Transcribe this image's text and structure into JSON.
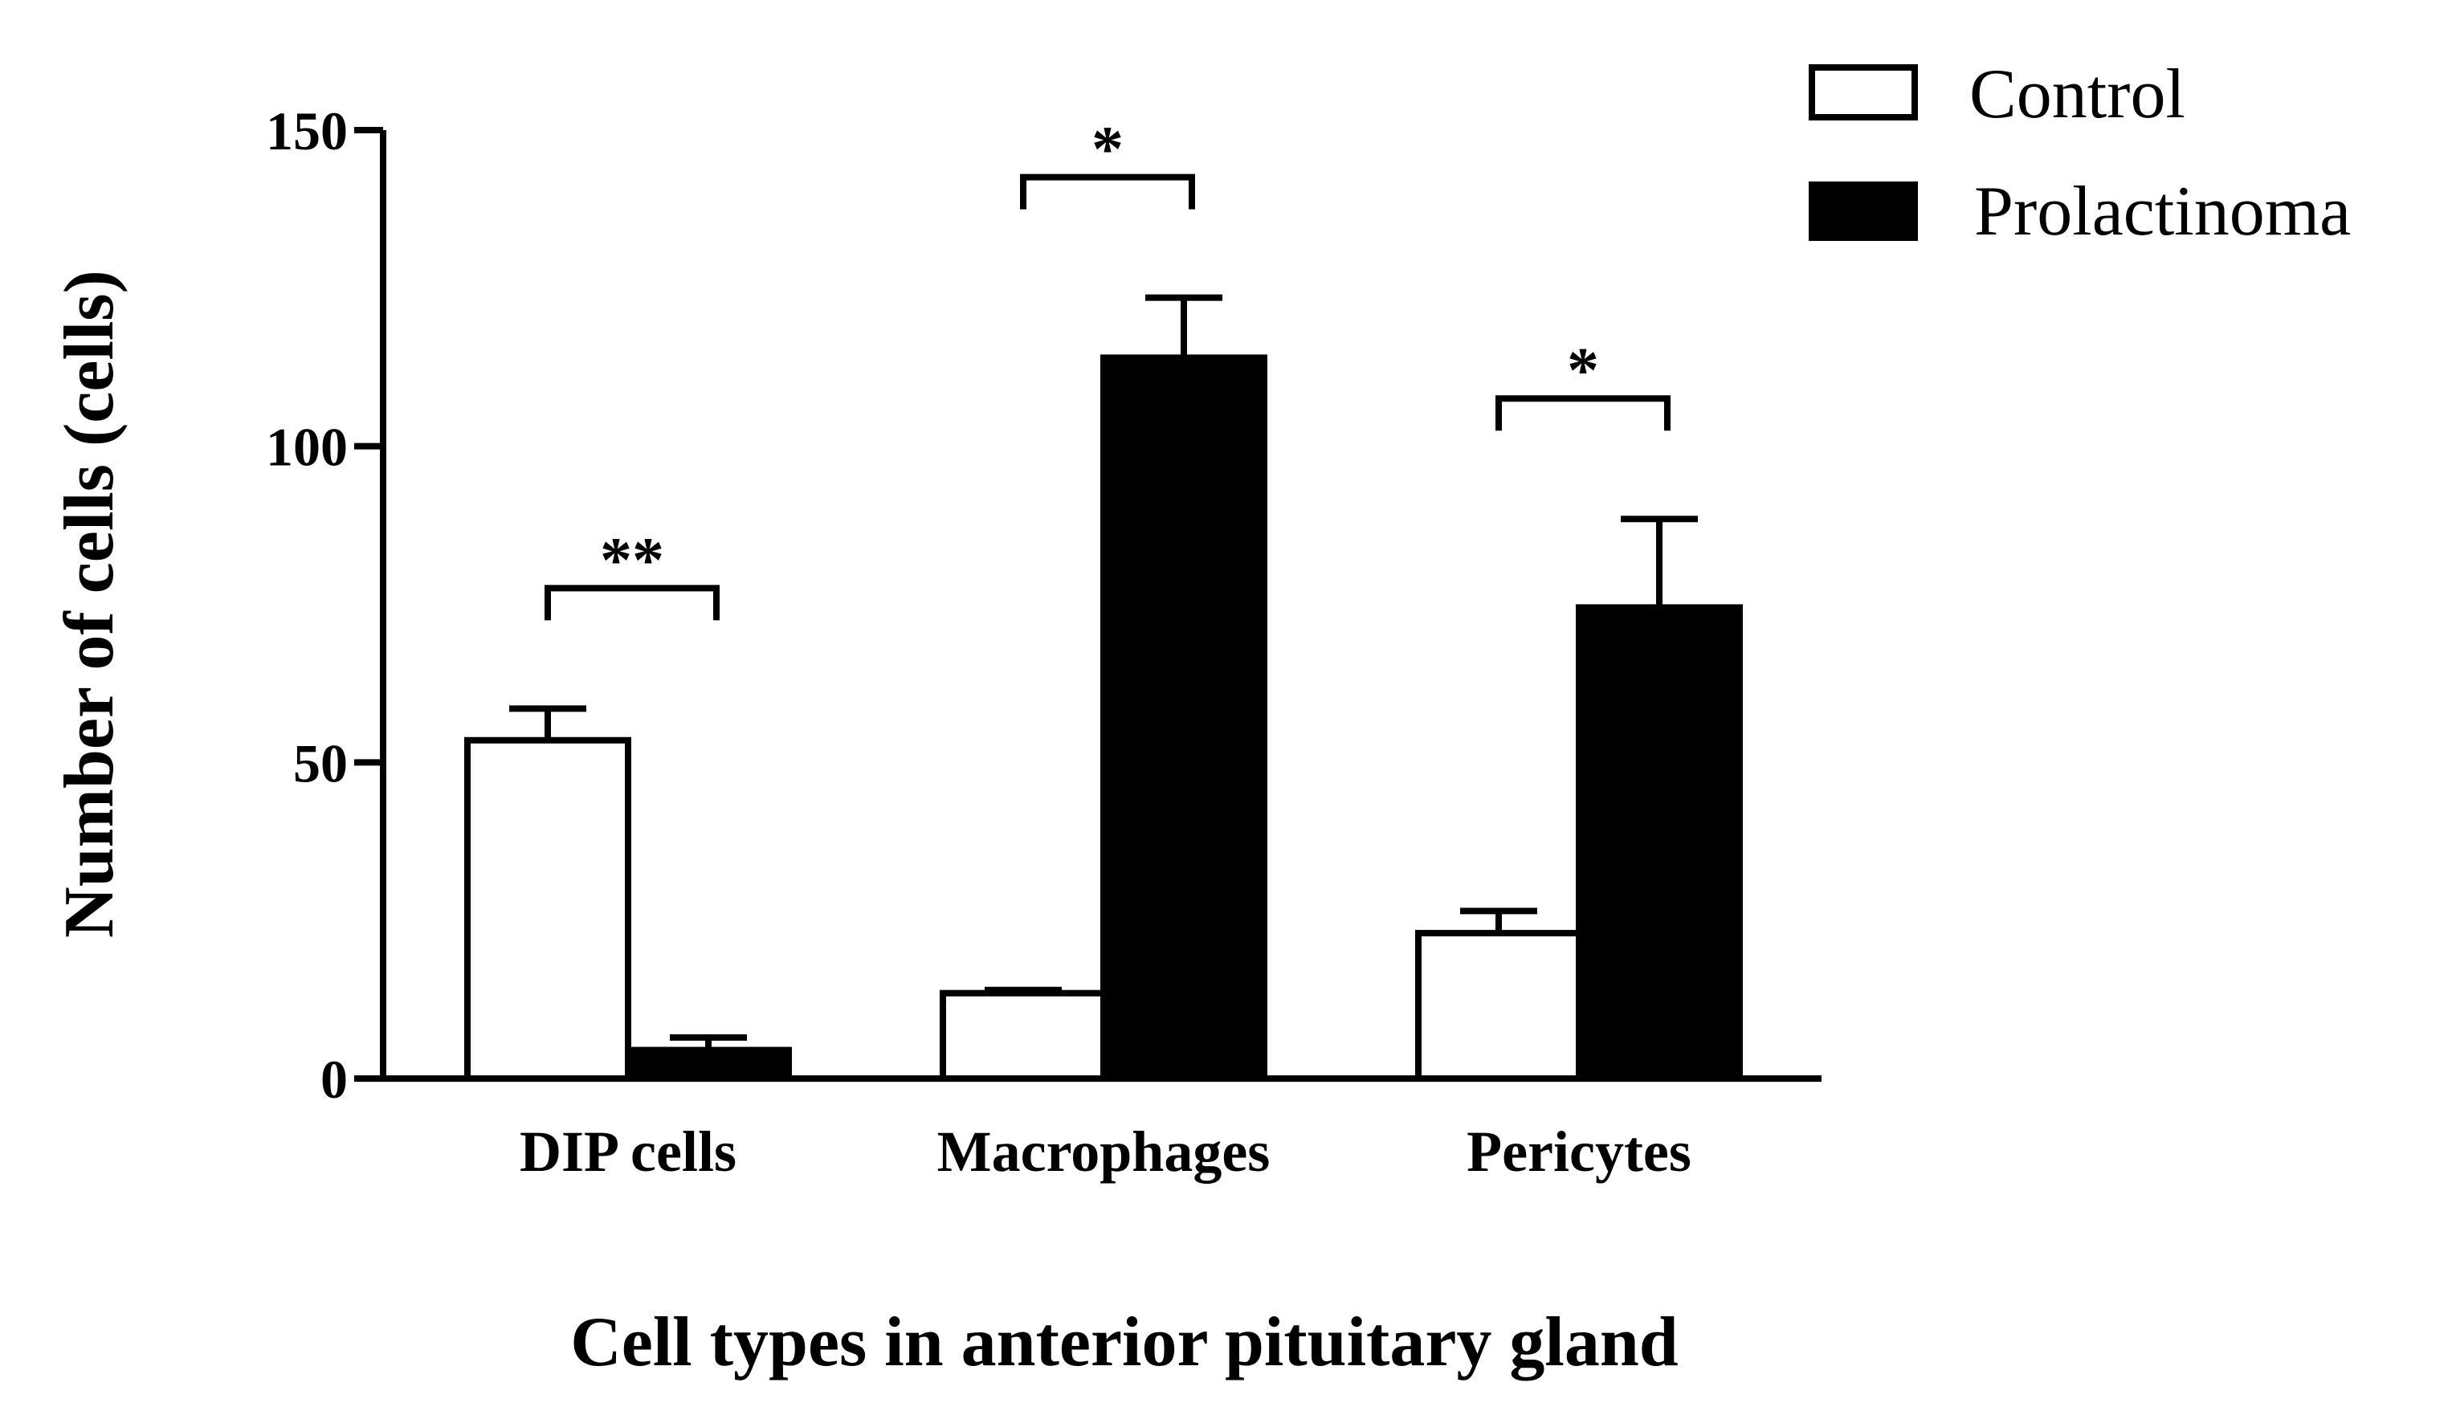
{
  "chart_data": {
    "type": "bar",
    "xlabel": "Cell types in anterior pituitary gland",
    "ylabel": "Number of cells (cells)",
    "categories": [
      "DIP cells",
      "Macrophages",
      "Pericytes"
    ],
    "ylim": [
      0,
      150
    ],
    "yticks": [
      0,
      50,
      100,
      150
    ],
    "ytick_labels": [
      "0",
      "50",
      "100",
      "150"
    ],
    "grid": false,
    "legend_position": "top-right",
    "series": [
      {
        "name": "Control",
        "fill": "#ffffff",
        "values": [
          53.5,
          13.5,
          23
        ],
        "errors": [
          5,
          0.5,
          3.5
        ]
      },
      {
        "name": "Prolactinoma",
        "fill": "#000000",
        "values": [
          4.5,
          114,
          74.5
        ],
        "errors": [
          2,
          9.5,
          14
        ]
      }
    ],
    "significance": [
      {
        "category": "DIP cells",
        "label": "**"
      },
      {
        "category": "Macrophages",
        "label": "*"
      },
      {
        "category": "Pericytes",
        "label": "*"
      }
    ]
  }
}
